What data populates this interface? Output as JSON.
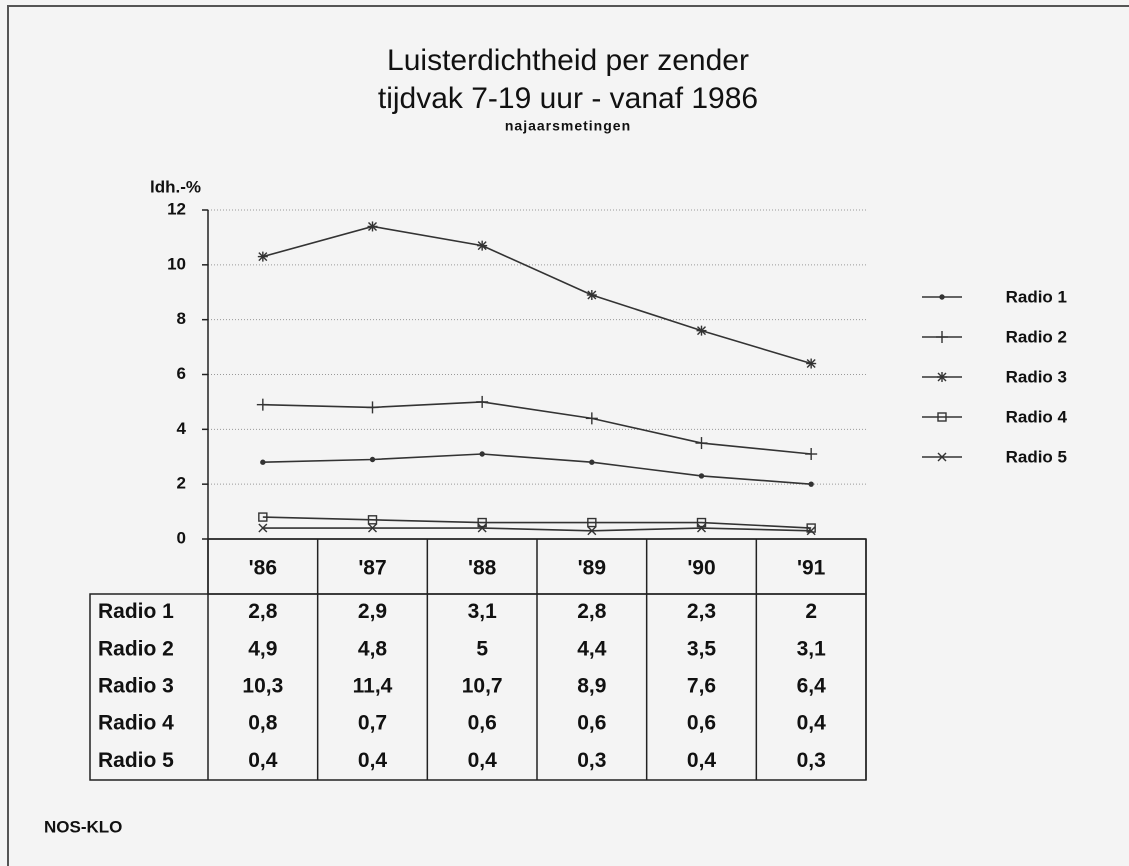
{
  "chart_data": {
    "type": "line",
    "title": [
      "Luisterdichtheid per zender",
      "tijdvak 7-19 uur - vanaf 1986"
    ],
    "subtitle": "najaarsmetingen",
    "y_label": "ldh.-%",
    "source": "NOS-KLO",
    "categories": [
      "'86",
      "'87",
      "'88",
      "'89",
      "'90",
      "'91"
    ],
    "ylim": [
      0,
      12
    ],
    "yticks": [
      0,
      2,
      4,
      6,
      8,
      10,
      12
    ],
    "grid": true,
    "legend": "right",
    "series": [
      {
        "name": "Radio 1",
        "color": "#333333",
        "marker": "dot",
        "values": [
          2.8,
          2.9,
          3.1,
          2.8,
          2.3,
          2
        ],
        "value_labels": [
          "2,8",
          "2,9",
          "3,1",
          "2,8",
          "2,3",
          "2"
        ]
      },
      {
        "name": "Radio 2",
        "color": "#333333",
        "marker": "plus",
        "values": [
          4.9,
          4.8,
          5,
          4.4,
          3.5,
          3.1
        ],
        "value_labels": [
          "4,9",
          "4,8",
          "5",
          "4,4",
          "3,5",
          "3,1"
        ]
      },
      {
        "name": "Radio 3",
        "color": "#333333",
        "marker": "asterisk",
        "values": [
          10.3,
          11.4,
          10.7,
          8.9,
          7.6,
          6.4
        ],
        "value_labels": [
          "10,3",
          "11,4",
          "10,7",
          "8,9",
          "7,6",
          "6,4"
        ]
      },
      {
        "name": "Radio 4",
        "color": "#333333",
        "marker": "square",
        "values": [
          0.8,
          0.7,
          0.6,
          0.6,
          0.6,
          0.4
        ],
        "value_labels": [
          "0,8",
          "0,7",
          "0,6",
          "0,6",
          "0,6",
          "0,4"
        ]
      },
      {
        "name": "Radio 5",
        "color": "#333333",
        "marker": "x",
        "values": [
          0.4,
          0.4,
          0.4,
          0.3,
          0.4,
          0.3
        ],
        "value_labels": [
          "0,4",
          "0,4",
          "0,4",
          "0,3",
          "0,4",
          "0,3"
        ]
      }
    ]
  }
}
